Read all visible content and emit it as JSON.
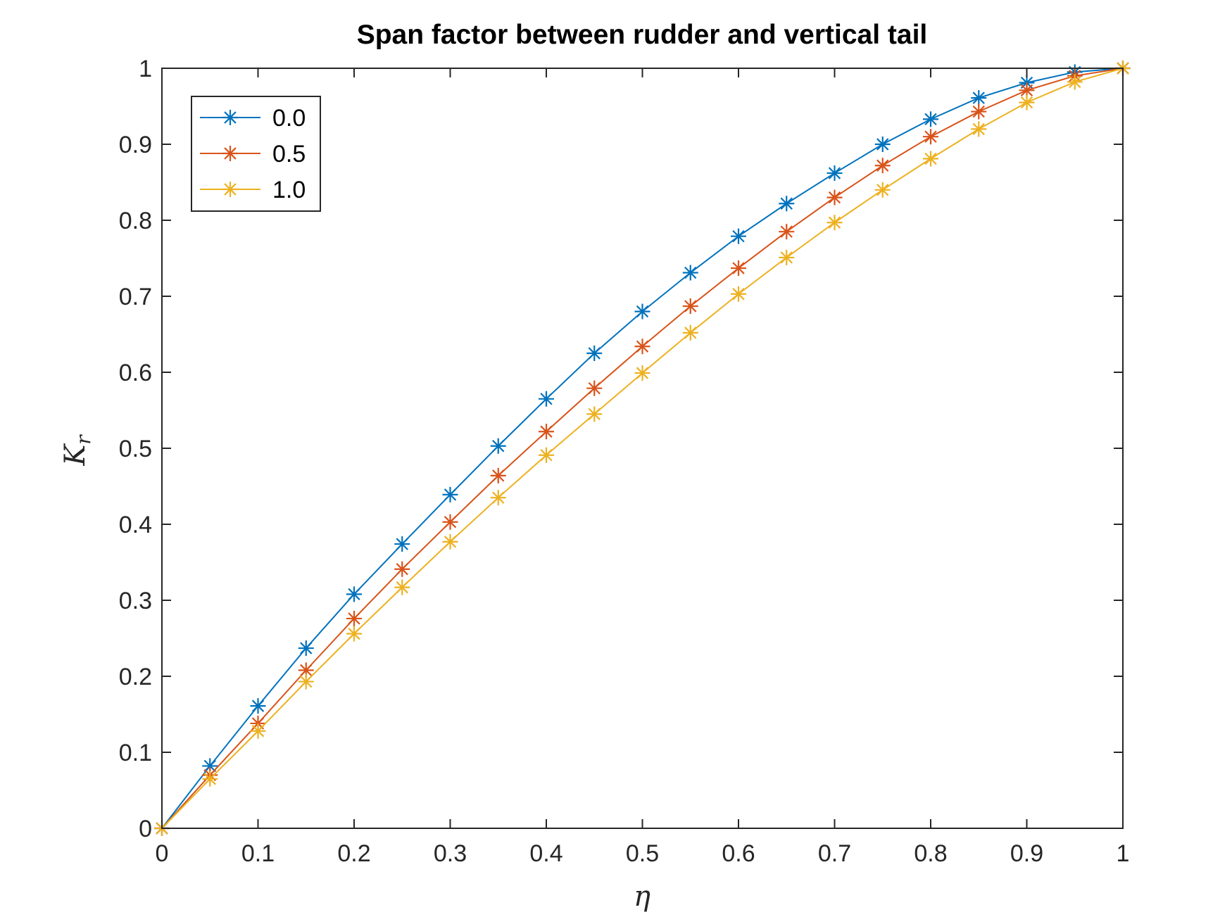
{
  "chart_data": {
    "type": "line",
    "title": "Span factor between rudder and vertical tail",
    "xlabel": "η",
    "ylabel": "K",
    "ylabel_subscript": "r",
    "xlim": [
      0,
      1
    ],
    "ylim": [
      0,
      1
    ],
    "xticks": [
      "0",
      "0.1",
      "0.2",
      "0.3",
      "0.4",
      "0.5",
      "0.6",
      "0.7",
      "0.8",
      "0.9",
      "1"
    ],
    "yticks": [
      "0",
      "0.1",
      "0.2",
      "0.3",
      "0.4",
      "0.5",
      "0.6",
      "0.7",
      "0.8",
      "0.9",
      "1"
    ],
    "grid": false,
    "legend_position": "top-left",
    "marker": "asterisk",
    "x": [
      0,
      0.05,
      0.1,
      0.15,
      0.2,
      0.25,
      0.3,
      0.35,
      0.4,
      0.45,
      0.5,
      0.55,
      0.6,
      0.65,
      0.7,
      0.75,
      0.8,
      0.85,
      0.9,
      0.95,
      1.0
    ],
    "series": [
      {
        "name": "0.0",
        "color": "#0072BD",
        "values": [
          0,
          0.082,
          0.161,
          0.237,
          0.308,
          0.374,
          0.439,
          0.503,
          0.565,
          0.625,
          0.68,
          0.731,
          0.779,
          0.822,
          0.862,
          0.9,
          0.933,
          0.961,
          0.981,
          0.995,
          1.0
        ]
      },
      {
        "name": "0.5",
        "color": "#D95319",
        "values": [
          0,
          0.07,
          0.138,
          0.208,
          0.276,
          0.341,
          0.403,
          0.464,
          0.522,
          0.579,
          0.634,
          0.687,
          0.737,
          0.785,
          0.83,
          0.872,
          0.91,
          0.943,
          0.971,
          0.99,
          1.0
        ]
      },
      {
        "name": "1.0",
        "color": "#EDB120",
        "values": [
          0,
          0.065,
          0.128,
          0.193,
          0.256,
          0.317,
          0.377,
          0.435,
          0.491,
          0.545,
          0.599,
          0.652,
          0.703,
          0.751,
          0.797,
          0.84,
          0.881,
          0.92,
          0.955,
          0.982,
          1.0
        ]
      }
    ]
  }
}
